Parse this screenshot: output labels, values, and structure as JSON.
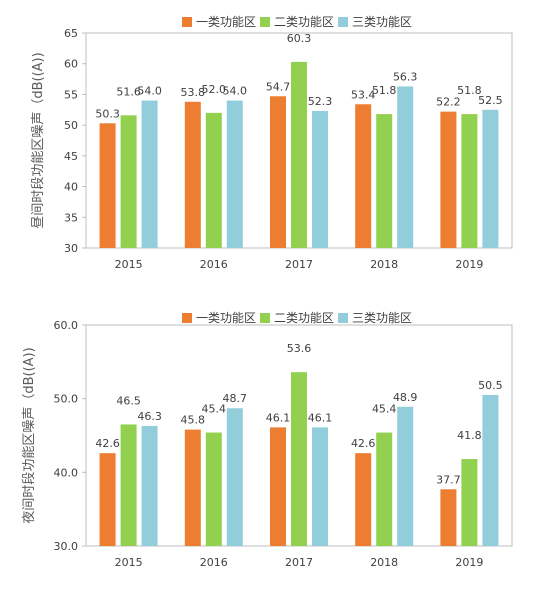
{
  "chart_data": [
    {
      "type": "bar",
      "categories": [
        "2015",
        "2016",
        "2017",
        "2018",
        "2019"
      ],
      "series": [
        {
          "name": "一类功能区",
          "values": [
            50.3,
            53.8,
            54.7,
            53.4,
            52.2
          ],
          "color": "#ED7D31"
        },
        {
          "name": "二类功能区",
          "values": [
            51.6,
            52.0,
            60.3,
            51.8,
            51.8
          ],
          "color": "#92D050"
        },
        {
          "name": "三类功能区",
          "values": [
            54.0,
            54.0,
            52.3,
            56.3,
            52.5
          ],
          "color": "#92CDDC"
        }
      ],
      "ylabel": "昼间时段功能区噪声（dB((A))",
      "ylim": [
        30,
        65
      ],
      "yticks": [
        "30",
        "35",
        "40",
        "45",
        "50",
        "55",
        "60",
        "65"
      ],
      "grid": false,
      "legend": "top"
    },
    {
      "type": "bar",
      "categories": [
        "2015",
        "2016",
        "2017",
        "2018",
        "2019"
      ],
      "series": [
        {
          "name": "一类功能区",
          "values": [
            42.6,
            45.8,
            46.1,
            42.6,
            37.7
          ],
          "color": "#ED7D31"
        },
        {
          "name": "二类功能区",
          "values": [
            46.5,
            45.4,
            53.6,
            45.4,
            41.8
          ],
          "color": "#92D050"
        },
        {
          "name": "三类功能区",
          "values": [
            46.3,
            48.7,
            46.1,
            48.9,
            50.5
          ],
          "color": "#92CDDC"
        }
      ],
      "ylabel": "夜间时段功能区噪声（dB((A))",
      "ylim": [
        30,
        60
      ],
      "yticks": [
        "30.0",
        "40.0",
        "50.0",
        "60.0"
      ],
      "grid": false,
      "legend": "top"
    }
  ]
}
